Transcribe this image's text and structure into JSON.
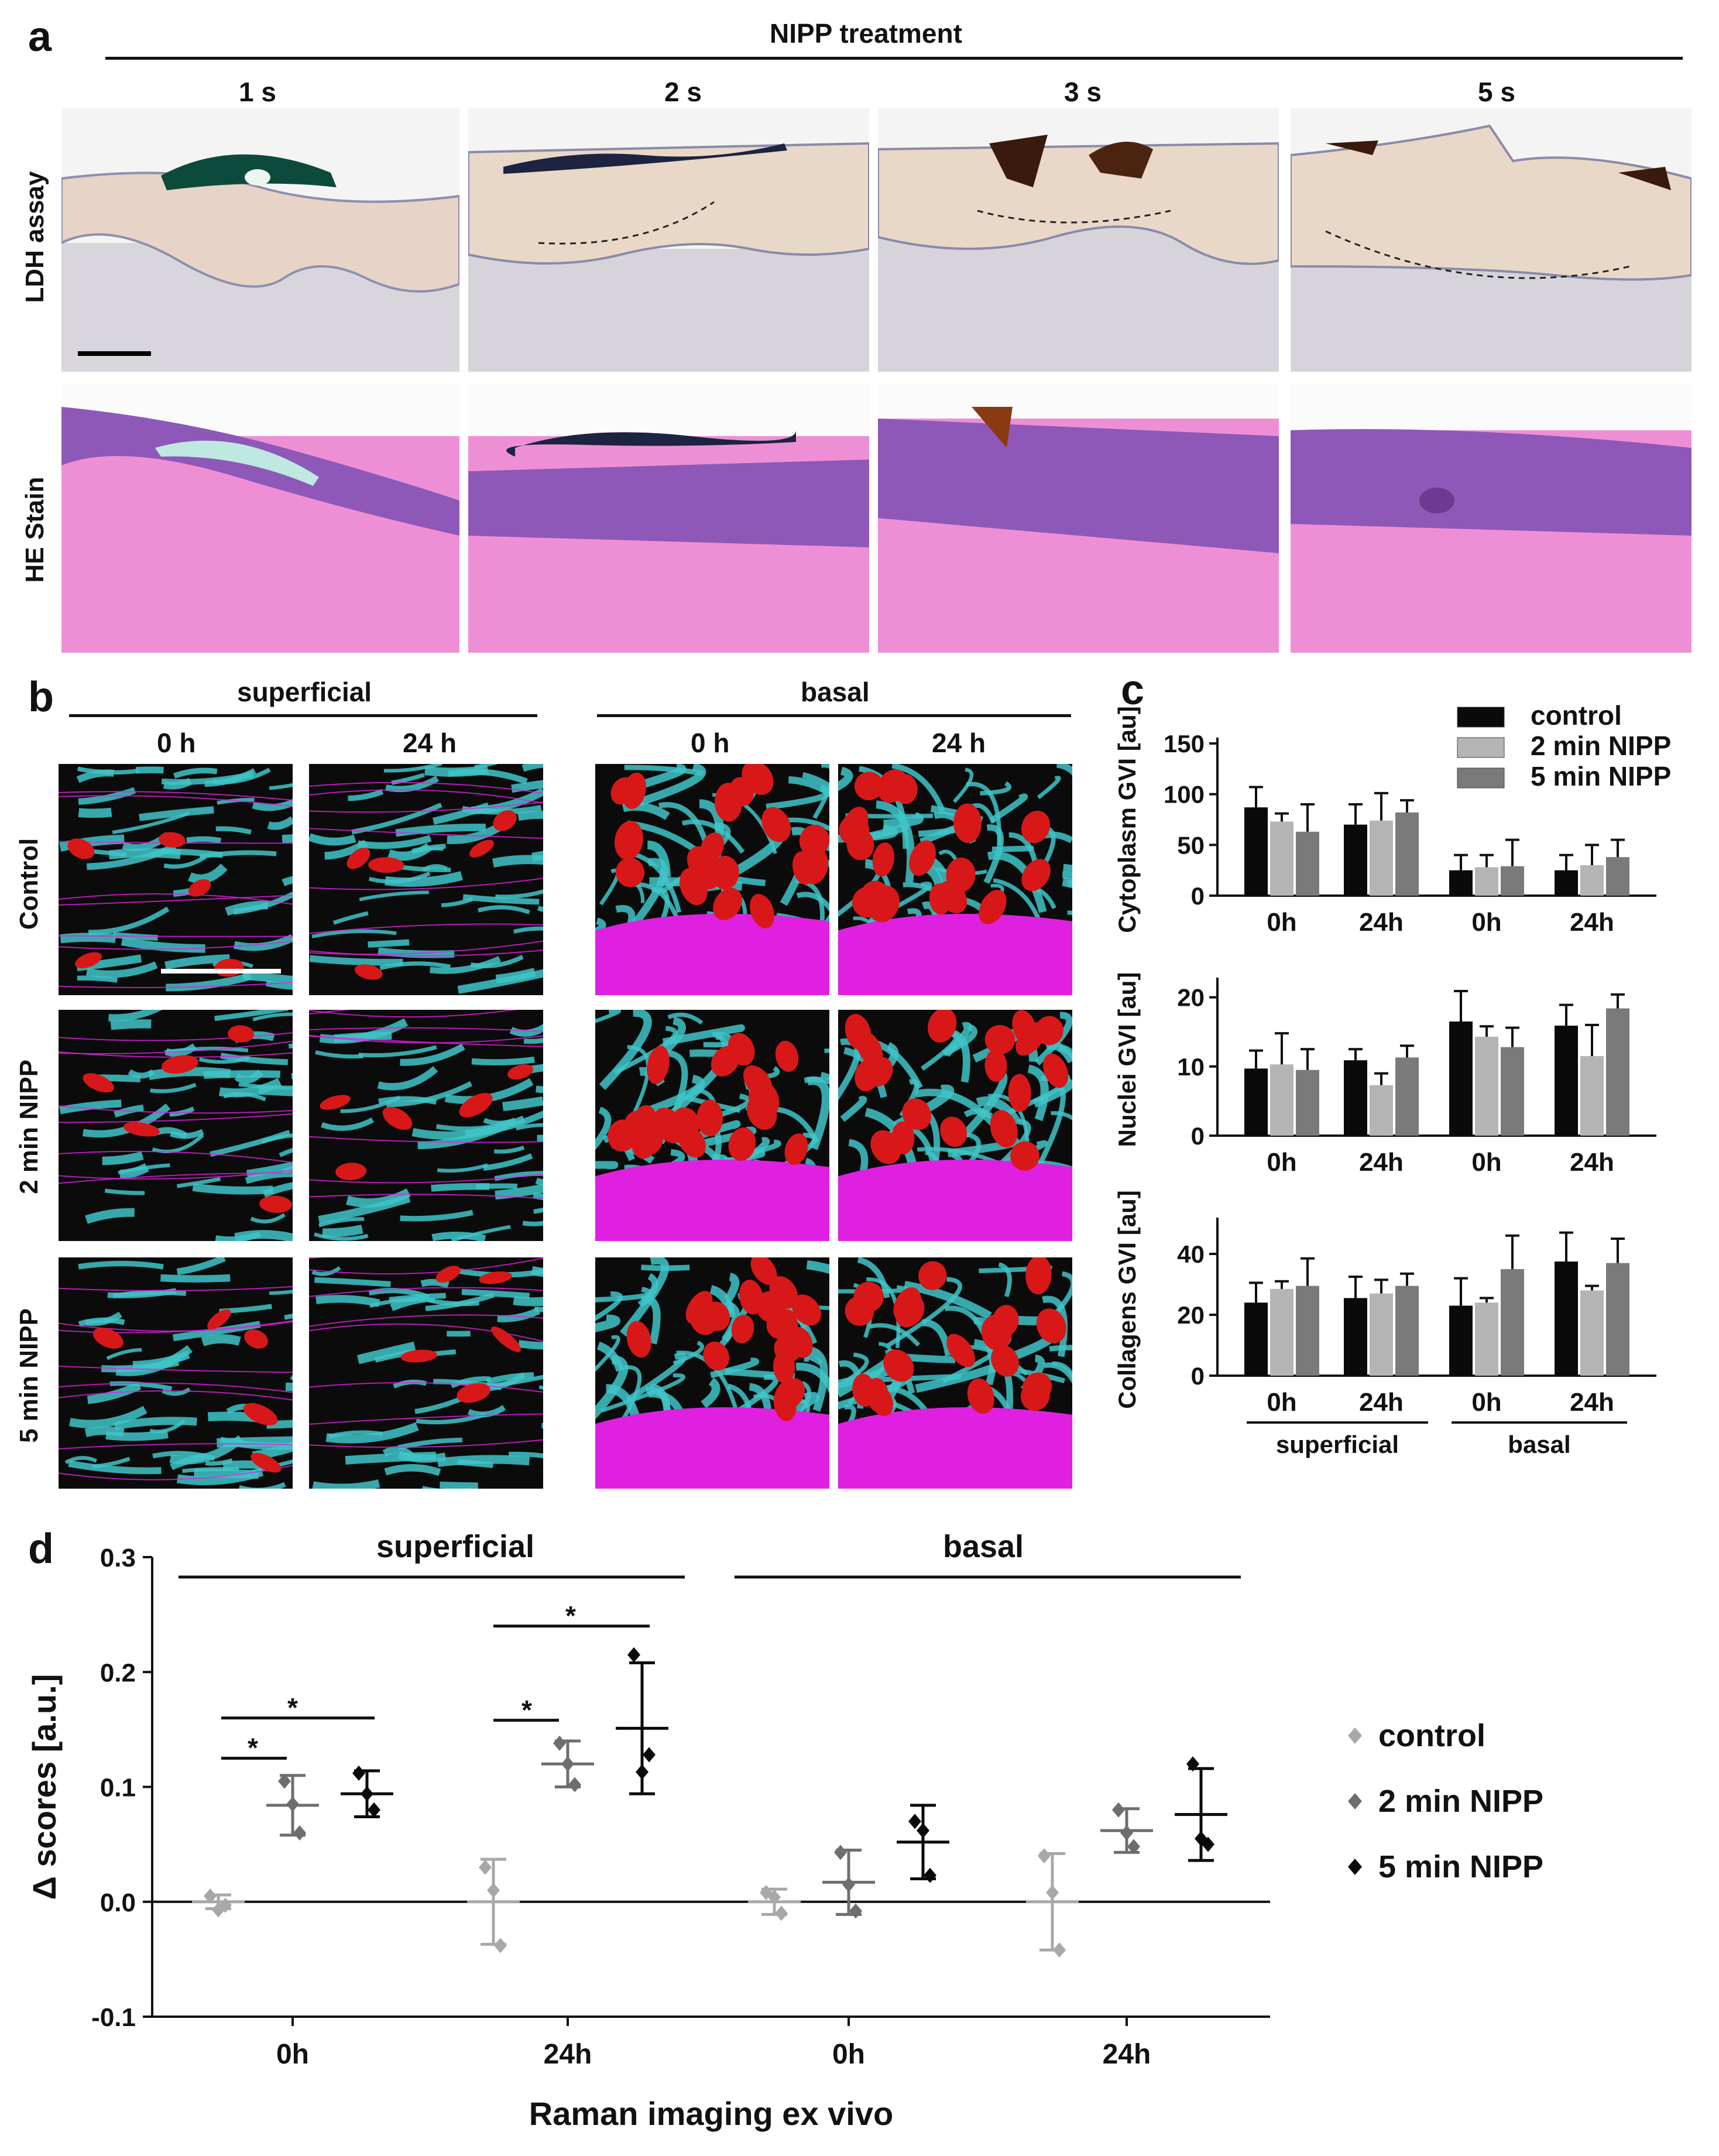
{
  "panel_a": {
    "letter": "a",
    "title": "NIPP treatment",
    "columns": [
      "1 s",
      "2 s",
      "3 s",
      "5 s"
    ],
    "rows": [
      "LDH assay",
      "HE Stain"
    ]
  },
  "panel_b": {
    "letter": "b",
    "groups": [
      {
        "label": "superficial",
        "times": [
          "0 h",
          "24 h"
        ]
      },
      {
        "label": "basal",
        "times": [
          "0 h",
          "24 h"
        ]
      }
    ],
    "rows": [
      "Control",
      "2 min NIPP",
      "5 min NIPP"
    ],
    "colors": {
      "cytoplasm": "#3fc4c8",
      "nuclei": "#d81818",
      "collagen": "#e020e0",
      "background": "#0b0b0b"
    }
  },
  "panel_c": {
    "letter": "c",
    "legend": [
      "control",
      "2 min NIPP",
      "5 min NIPP"
    ],
    "colors": [
      "#0a0a0a",
      "#b4b4b4",
      "#7a7a7a"
    ],
    "xlabels": [
      "0h",
      "24h",
      "0h",
      "24h"
    ],
    "groups": [
      "superficial",
      "basal"
    ]
  },
  "panel_d": {
    "letter": "d",
    "group_labels": [
      "superficial",
      "basal"
    ],
    "xlabels": [
      "0h",
      "24h",
      "0h",
      "24h"
    ],
    "xlabel": "Raman imaging ex vivo",
    "ylabel": "Δ scores [a.u.]",
    "yticks": [
      "0.3",
      "0.2",
      "0.1",
      "0.0",
      "-0.1"
    ],
    "legend": [
      "control",
      "2 min NIPP",
      "5 min NIPP"
    ],
    "colors": [
      "#a8a8a8",
      "#6e6e6e",
      "#0a0a0a"
    ],
    "sig_mark": "*"
  },
  "chart_data": [
    {
      "type": "bar",
      "ylabel": "Cytoplasm GVI [au]",
      "categories": [
        "0h",
        "24h",
        "0h",
        "24h"
      ],
      "ylim": [
        0,
        150
      ],
      "yticks": [
        0,
        50,
        100,
        150
      ],
      "series": [
        {
          "name": "control",
          "values": [
            87,
            70,
            25,
            25
          ],
          "errors": [
            20,
            20,
            15,
            15
          ]
        },
        {
          "name": "2 min NIPP",
          "values": [
            73,
            74,
            28,
            30
          ],
          "errors": [
            8,
            27,
            12,
            20
          ]
        },
        {
          "name": "5 min NIPP",
          "values": [
            63,
            82,
            29,
            38
          ],
          "errors": [
            27,
            12,
            26,
            17
          ]
        }
      ]
    },
    {
      "type": "bar",
      "ylabel": "Nuclei GVI [au]",
      "categories": [
        "0h",
        "24h",
        "0h",
        "24h"
      ],
      "ylim": [
        0,
        22
      ],
      "yticks": [
        0,
        10,
        20
      ],
      "series": [
        {
          "name": "control",
          "values": [
            9.7,
            10.9,
            16.5,
            15.9
          ],
          "errors": [
            2.6,
            1.6,
            4.4,
            3.0
          ]
        },
        {
          "name": "2 min NIPP",
          "values": [
            10.3,
            7.3,
            14.3,
            11.5
          ],
          "errors": [
            4.5,
            1.7,
            1.5,
            4.5
          ]
        },
        {
          "name": "5 min NIPP",
          "values": [
            9.5,
            11.3,
            12.8,
            18.4
          ],
          "errors": [
            3.0,
            1.7,
            2.8,
            2.0
          ]
        }
      ]
    },
    {
      "type": "bar",
      "ylabel": "Collagens GVI [au]",
      "categories": [
        "0h",
        "24h",
        "0h",
        "24h"
      ],
      "ylim": [
        0,
        50
      ],
      "yticks": [
        0,
        20,
        40
      ],
      "series": [
        {
          "name": "control",
          "values": [
            24,
            25.5,
            23,
            37.5
          ],
          "errors": [
            6.5,
            7,
            9,
            9.5
          ]
        },
        {
          "name": "2 min NIPP",
          "values": [
            28.5,
            27,
            24,
            28
          ],
          "errors": [
            2.5,
            4.5,
            1.5,
            1.5
          ]
        },
        {
          "name": "5 min NIPP",
          "values": [
            29.5,
            29.5,
            35,
            37
          ],
          "errors": [
            9,
            4,
            11,
            8
          ]
        }
      ]
    },
    {
      "type": "scatter",
      "ylabel": "Δ scores [a.u.]",
      "xlabel": "Raman imaging ex vivo",
      "categories": [
        "0h",
        "24h",
        "0h",
        "24h"
      ],
      "ylim": [
        -0.1,
        0.3
      ],
      "yticks": [
        -0.1,
        0.0,
        0.1,
        0.2,
        0.3
      ],
      "series": [
        {
          "name": "control",
          "points": [
            [
              0.005,
              -0.003,
              -0.007
            ],
            [
              0.03,
              -0.038,
              0.01
            ],
            [
              0.008,
              -0.01,
              0.004
            ],
            [
              0.04,
              -0.042,
              0.008
            ]
          ],
          "mean": [
            0.0,
            0.0,
            0.0,
            0.0
          ],
          "sd": [
            0.006,
            0.037,
            0.011,
            0.042
          ]
        },
        {
          "name": "2 min NIPP",
          "points": [
            [
              0.105,
              0.06,
              0.085
            ],
            [
              0.138,
              0.102,
              0.12
            ],
            [
              0.043,
              -0.008,
              0.015
            ],
            [
              0.08,
              0.048,
              0.06
            ]
          ],
          "mean": [
            0.084,
            0.12,
            0.017,
            0.062
          ],
          "sd": [
            0.026,
            0.02,
            0.028,
            0.019
          ]
        },
        {
          "name": "5 min NIPP",
          "points": [
            [
              0.112,
              0.08,
              0.094
            ],
            [
              0.215,
              0.128,
              0.113
            ],
            [
              0.07,
              0.023,
              0.062
            ],
            [
              0.12,
              0.05,
              0.055
            ]
          ],
          "mean": [
            0.094,
            0.151,
            0.052,
            0.076
          ],
          "sd": [
            0.02,
            0.057,
            0.032,
            0.04
          ]
        }
      ]
    }
  ]
}
